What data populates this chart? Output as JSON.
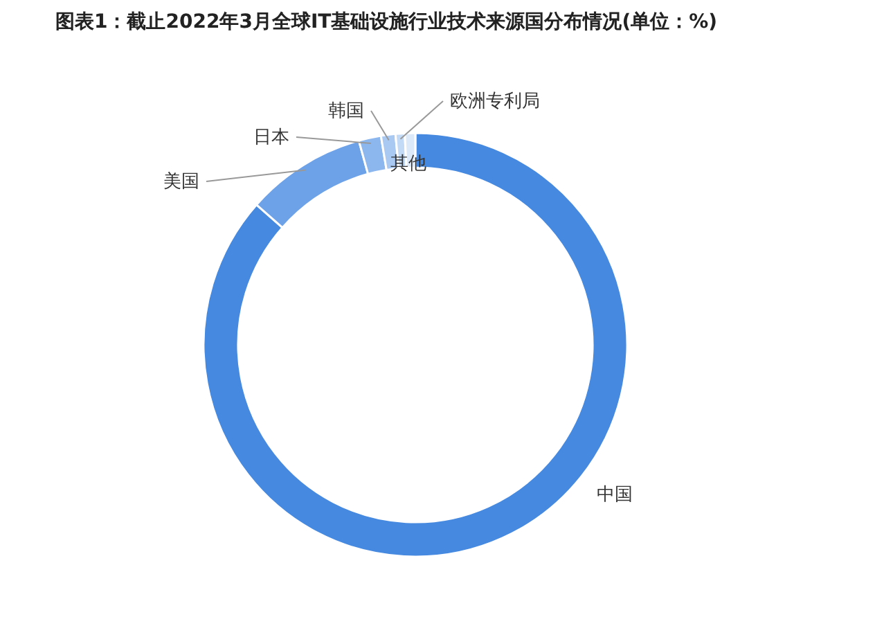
{
  "chart_data": {
    "type": "donut",
    "title": "图表1：截止2022年3月全球IT基础设施行业技术来源国分布情况(单位：%)",
    "categories": [
      "中国",
      "美国",
      "日本",
      "韩国",
      "欧洲专利局",
      "其他"
    ],
    "values": [
      86.5,
      9.2,
      1.7,
      1.1,
      0.7,
      0.8
    ],
    "colors": [
      "#4589e0",
      "#6ea2e8",
      "#8cb6ee",
      "#a9c9f2",
      "#c3daf6",
      "#dce9f9"
    ],
    "legend": false
  }
}
